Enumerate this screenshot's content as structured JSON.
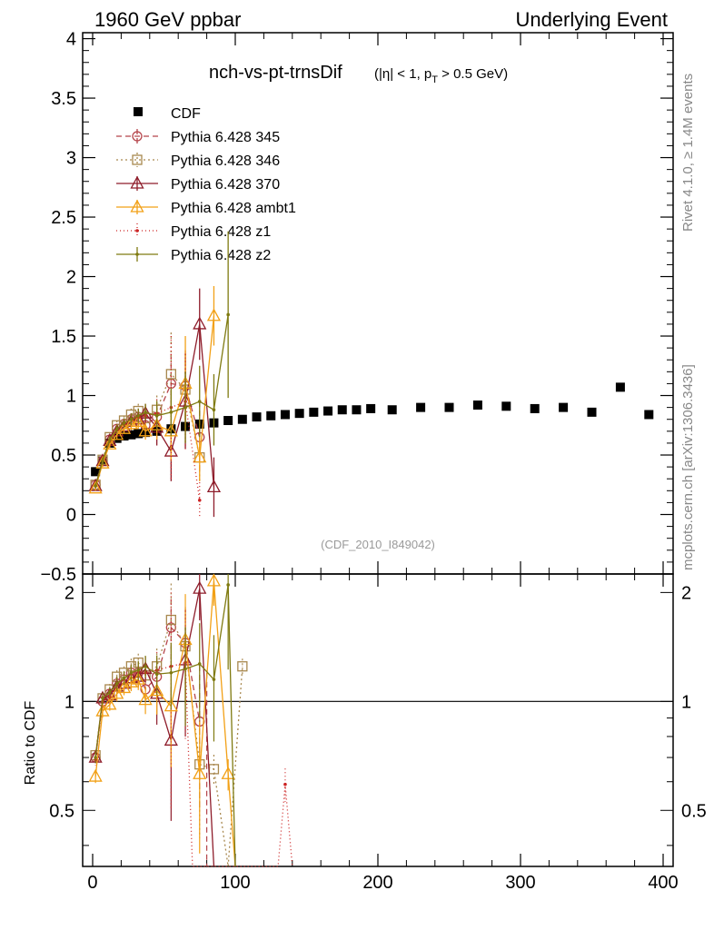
{
  "header": {
    "left": "1960 GeV ppbar",
    "right": "Underlying Event"
  },
  "title": {
    "main": "nch-vs-pt-trnsDif",
    "cut_eta": "(|η| < 1, p",
    "cut_sub": "T",
    "cut_tail": " > 0.5 GeV)"
  },
  "side_labels": {
    "rivet": "Rivet 4.1.0, ≥ 1.4M events",
    "source": "mcplots.cern.ch [arXiv:1306.3436]"
  },
  "watermark": "(CDF_2010_I849042)",
  "chart_data": {
    "type": "scatter",
    "main": {
      "ylim": [
        -0.5,
        4.05
      ],
      "yticks": [
        "−0.5",
        "0",
        "0.5",
        "1",
        "1.5",
        "2",
        "2.5",
        "3",
        "3.5",
        "4"
      ],
      "ytick_values": [
        -0.5,
        0,
        0.5,
        1,
        1.5,
        2,
        2.5,
        3,
        3.5,
        4
      ]
    },
    "ratio": {
      "ylabel": "Ratio to CDF",
      "ylim": [
        0.35,
        2.25
      ],
      "yticks": [
        "0.5",
        "1",
        "2"
      ],
      "ytick_values": [
        0.5,
        1,
        2
      ]
    },
    "x": {
      "xlim": [
        -7,
        407
      ],
      "xticks": [
        "0",
        "100",
        "200",
        "300",
        "400"
      ],
      "xtick_values": [
        0,
        100,
        200,
        300,
        400
      ]
    },
    "cdf": {
      "name": "CDF",
      "x": [
        2,
        7,
        12,
        17,
        22,
        27,
        32,
        37,
        45,
        55,
        65,
        75,
        85,
        95,
        105,
        115,
        125,
        135,
        145,
        155,
        165,
        175,
        185,
        195,
        210,
        230,
        250,
        270,
        290,
        310,
        330,
        350,
        370,
        390
      ],
      "y": [
        0.36,
        0.45,
        0.6,
        0.64,
        0.66,
        0.67,
        0.68,
        0.69,
        0.7,
        0.72,
        0.74,
        0.76,
        0.77,
        0.79,
        0.8,
        0.82,
        0.83,
        0.84,
        0.85,
        0.86,
        0.87,
        0.88,
        0.88,
        0.89,
        0.88,
        0.9,
        0.9,
        0.92,
        0.91,
        0.89,
        0.9,
        0.86,
        1.07,
        0.84
      ]
    },
    "series": [
      {
        "name": "Pythia 6.428 345",
        "color": "#b5444a",
        "dash": "6,4",
        "marker": "circle",
        "x": [
          2,
          7,
          12,
          17,
          22,
          27,
          32,
          37,
          45,
          55,
          65,
          75
        ],
        "y": [
          0.25,
          0.45,
          0.63,
          0.72,
          0.76,
          0.8,
          0.82,
          0.75,
          0.82,
          1.1,
          1.08,
          0.65
        ],
        "err": [
          0.02,
          0.03,
          0.03,
          0.04,
          0.04,
          0.05,
          0.06,
          0.07,
          0.12,
          0.25,
          0.3,
          0.3
        ],
        "ratio": [
          0.7,
          1.0,
          1.05,
          1.12,
          1.15,
          1.2,
          1.2,
          1.08,
          1.17,
          1.6,
          1.45,
          0.88
        ],
        "ratio_extra": [
          {
            "x": 80,
            "y": 0.3
          }
        ]
      },
      {
        "name": "Pythia 6.428 346",
        "color": "#a8884e",
        "dash": "2,3",
        "marker": "square",
        "x": [
          2,
          7,
          12,
          17,
          22,
          27,
          32,
          37,
          45,
          55,
          65,
          75
        ],
        "y": [
          0.25,
          0.46,
          0.65,
          0.75,
          0.79,
          0.84,
          0.87,
          0.81,
          0.88,
          1.18,
          1.05,
          0.48
        ],
        "err": [
          0.02,
          0.03,
          0.03,
          0.04,
          0.04,
          0.05,
          0.06,
          0.07,
          0.12,
          0.35,
          0.3,
          0.2
        ],
        "ratio": [
          0.71,
          1.02,
          1.08,
          1.17,
          1.2,
          1.25,
          1.28,
          1.18,
          1.25,
          1.68,
          1.42,
          0.67,
          0.65,
          0.3,
          1.25
        ],
        "ratio_x": [
          2,
          7,
          12,
          17,
          22,
          27,
          32,
          37,
          45,
          55,
          65,
          75,
          85,
          95,
          105
        ]
      },
      {
        "name": "Pythia 6.428 370",
        "color": "#8e1c2a",
        "dash": "",
        "marker": "triangle",
        "x": [
          2,
          7,
          12,
          17,
          22,
          27,
          32,
          37,
          45,
          55,
          65,
          75,
          85
        ],
        "y": [
          0.24,
          0.45,
          0.62,
          0.7,
          0.74,
          0.78,
          0.8,
          0.85,
          0.73,
          0.53,
          0.95,
          1.6,
          0.23
        ],
        "err": [
          0.02,
          0.03,
          0.03,
          0.04,
          0.04,
          0.05,
          0.06,
          0.08,
          0.15,
          0.25,
          0.4,
          0.3,
          0.25
        ],
        "ratio": [
          0.7,
          1.02,
          1.04,
          1.1,
          1.12,
          1.16,
          1.17,
          1.23,
          1.05,
          0.78,
          1.3,
          2.05,
          0.3
        ],
        "ratio_x": [
          2,
          7,
          12,
          17,
          22,
          27,
          32,
          37,
          45,
          55,
          65,
          75,
          85
        ]
      },
      {
        "name": "Pythia 6.428 ambt1",
        "color": "#f2a016",
        "dash": "",
        "marker": "triangle",
        "x": [
          2,
          7,
          12,
          17,
          22,
          27,
          32,
          37,
          45,
          55,
          65,
          75,
          85
        ],
        "y": [
          0.22,
          0.43,
          0.59,
          0.67,
          0.72,
          0.76,
          0.78,
          0.7,
          0.75,
          0.7,
          1.1,
          0.48,
          1.67
        ],
        "err": [
          0.02,
          0.03,
          0.03,
          0.04,
          0.04,
          0.05,
          0.06,
          0.07,
          0.12,
          0.25,
          0.4,
          0.2,
          0.25
        ],
        "ratio": [
          0.62,
          0.94,
          0.98,
          1.05,
          1.09,
          1.13,
          1.15,
          1.01,
          1.07,
          0.97,
          1.48,
          0.63,
          2.15,
          0.63,
          0.3
        ],
        "ratio_x": [
          2,
          7,
          12,
          17,
          22,
          27,
          32,
          37,
          45,
          55,
          65,
          75,
          85,
          95,
          100
        ]
      },
      {
        "name": "Pythia 6.428 z1",
        "color": "#cc2222",
        "dash": "1,3",
        "marker": "dot",
        "x": [
          2,
          7,
          12,
          17,
          22,
          27,
          32,
          37,
          45,
          55,
          65,
          75
        ],
        "y": [
          0.24,
          0.45,
          0.62,
          0.71,
          0.76,
          0.8,
          0.82,
          0.83,
          0.85,
          0.9,
          0.95,
          0.12
        ],
        "err": [
          0.02,
          0.03,
          0.03,
          0.04,
          0.04,
          0.05,
          0.06,
          0.07,
          0.12,
          0.6,
          0.4,
          0.15
        ],
        "ratio": [
          0.69,
          1.0,
          1.03,
          1.11,
          1.15,
          1.19,
          1.21,
          1.2,
          1.22,
          1.25,
          1.28,
          0.3,
          0.3,
          0.3,
          0.59,
          0.3
        ],
        "ratio_x": [
          2,
          7,
          12,
          17,
          22,
          27,
          32,
          37,
          45,
          55,
          65,
          70,
          80,
          130,
          135,
          140
        ]
      },
      {
        "name": "Pythia 6.428 z2",
        "color": "#7f7a10",
        "dash": "",
        "marker": "dot",
        "x": [
          2,
          7,
          12,
          17,
          22,
          27,
          32,
          37,
          45,
          55,
          65,
          75,
          85,
          95
        ],
        "y": [
          0.24,
          0.45,
          0.63,
          0.72,
          0.77,
          0.8,
          0.83,
          0.86,
          0.83,
          0.86,
          0.9,
          0.95,
          0.88,
          1.68
        ],
        "err": [
          0.02,
          0.03,
          0.03,
          0.04,
          0.04,
          0.05,
          0.06,
          0.07,
          0.12,
          0.2,
          0.3,
          0.3,
          0.3,
          0.7
        ],
        "ratio": [
          0.7,
          1.02,
          1.06,
          1.12,
          1.16,
          1.2,
          1.22,
          1.25,
          1.19,
          1.2,
          1.23,
          1.27,
          1.15,
          2.1,
          0.3
        ],
        "ratio_x": [
          2,
          7,
          12,
          17,
          22,
          27,
          32,
          37,
          45,
          55,
          65,
          75,
          85,
          95,
          100
        ]
      }
    ]
  }
}
